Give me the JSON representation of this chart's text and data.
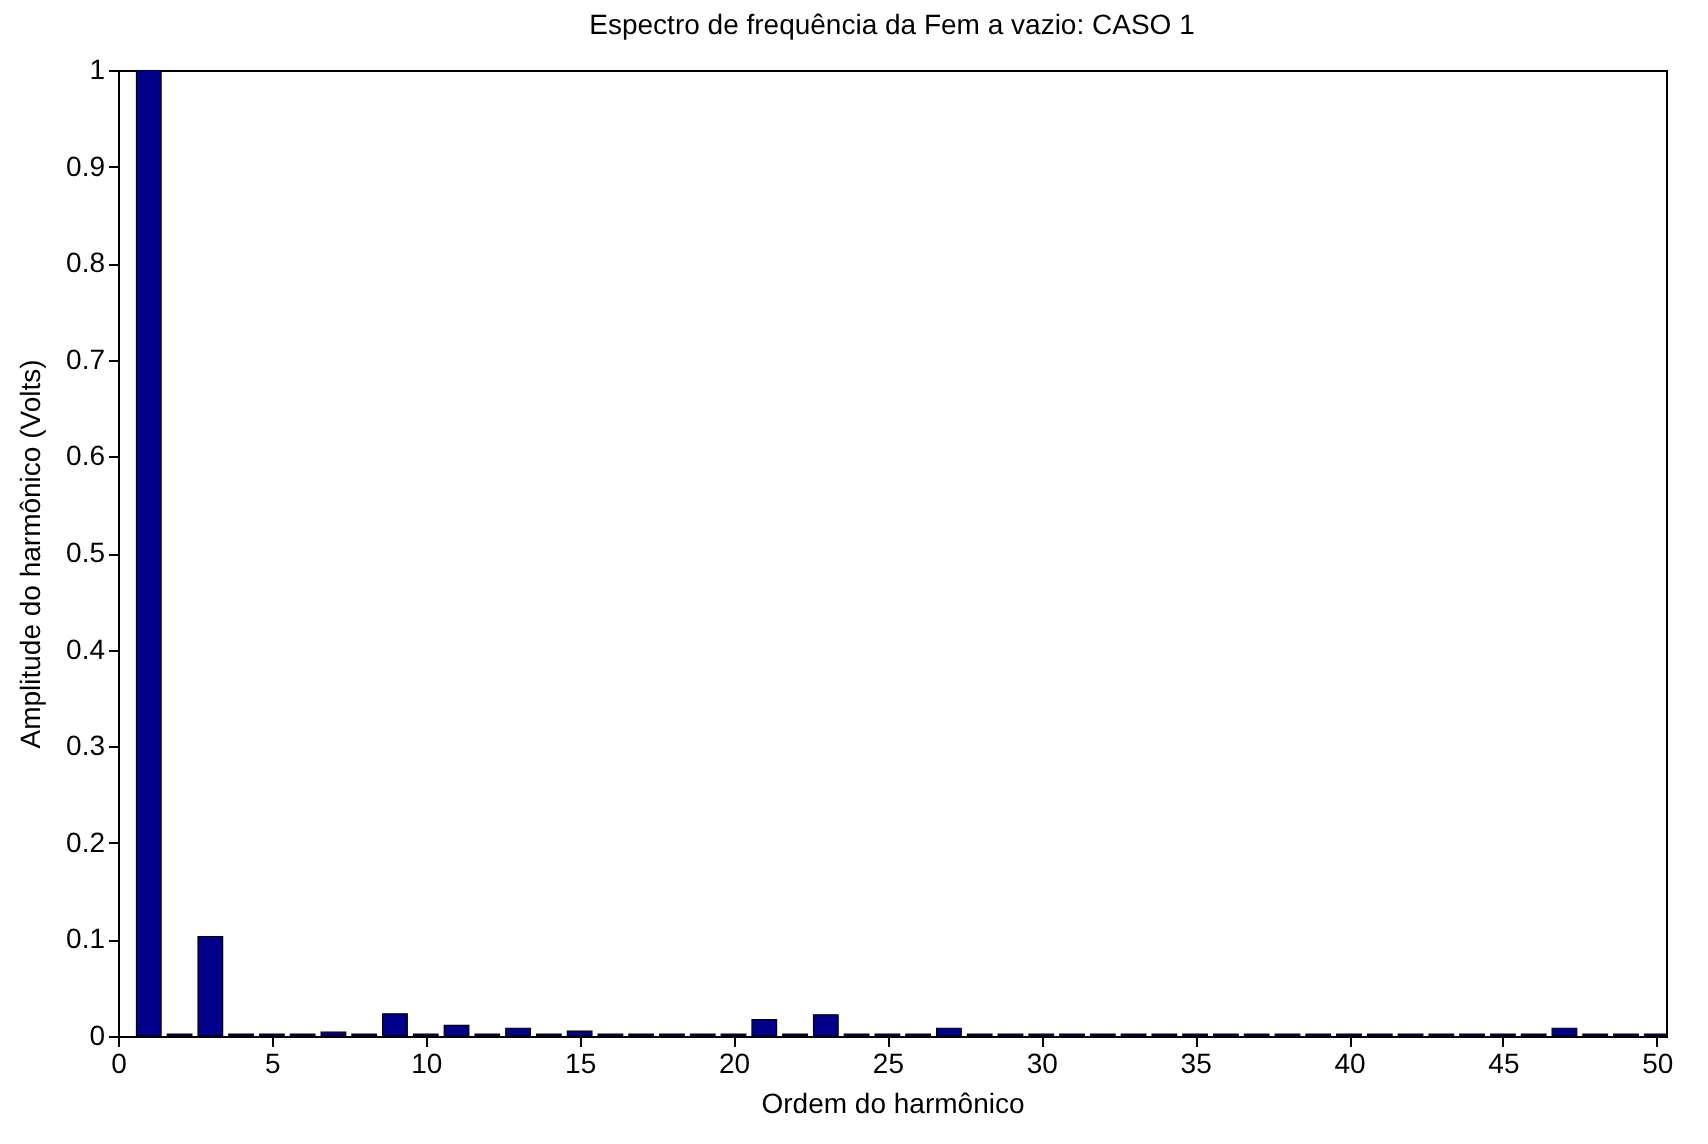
{
  "chart_data": {
    "type": "bar",
    "title": "Espectro de frequência da Fem a vazio: CASO 1",
    "xlabel": "Ordem do harmônico",
    "ylabel": "Amplitude do harmônico (Volts)",
    "x": [
      1,
      2,
      3,
      4,
      5,
      6,
      7,
      8,
      9,
      10,
      11,
      12,
      13,
      14,
      15,
      16,
      17,
      18,
      19,
      20,
      21,
      22,
      23,
      24,
      25,
      26,
      27,
      28,
      29,
      30,
      31,
      32,
      33,
      34,
      35,
      36,
      37,
      38,
      39,
      40,
      41,
      42,
      43,
      44,
      45,
      46,
      47,
      48,
      49,
      50
    ],
    "values": [
      1,
      0.002,
      0.103,
      0.002,
      0.002,
      0.002,
      0.004,
      0.002,
      0.023,
      0.002,
      0.011,
      0.002,
      0.008,
      0.002,
      0.005,
      0.002,
      0.002,
      0.002,
      0.002,
      0.002,
      0.017,
      0.002,
      0.022,
      0.002,
      0.002,
      0.002,
      0.008,
      0.002,
      0.002,
      0.002,
      0.002,
      0.002,
      0.002,
      0.002,
      0.002,
      0.002,
      0.002,
      0.002,
      0.002,
      0.002,
      0.002,
      0.002,
      0.002,
      0.002,
      0.002,
      0.002,
      0.008,
      0.002,
      0.002,
      0.002
    ],
    "color": "#00008b",
    "xlim": [
      0,
      50.3
    ],
    "xticks": [
      0,
      5,
      10,
      15,
      20,
      25,
      30,
      35,
      40,
      45,
      50
    ],
    "ylim": [
      0,
      1
    ],
    "yticks": [
      0,
      0.1,
      0.2,
      0.3,
      0.4,
      0.5,
      0.6,
      0.7,
      0.8,
      0.9,
      1
    ],
    "grid": false
  }
}
